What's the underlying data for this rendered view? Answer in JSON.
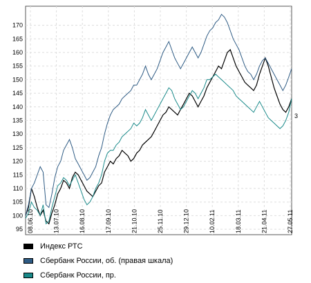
{
  "chart_data": {
    "type": "line",
    "title": "",
    "xlabel": "",
    "ylabel": "",
    "ylim": [
      93,
      177
    ],
    "yticks": [
      95,
      100,
      105,
      110,
      115,
      120,
      125,
      130,
      135,
      140,
      145,
      150,
      155,
      160,
      165,
      170
    ],
    "xticks": [
      "08.06.10",
      "13.07.10",
      "16.08.10",
      "17.09.10",
      "21.10.10",
      "25.11.10",
      "29.12.10",
      "10.02.11",
      "18.03.11",
      "21.04.11",
      "27.05.11"
    ],
    "right_axis_label": "3",
    "grid": true,
    "legend_position": "bottom",
    "series": [
      {
        "name": "Индекс РТС",
        "color": "#000000",
        "values": [
          100,
          103,
          110,
          107,
          103,
          100,
          102,
          98,
          97,
          101,
          104,
          108,
          110,
          113,
          112,
          110,
          114,
          116,
          115,
          113,
          111,
          109,
          108,
          107,
          109,
          111,
          112,
          116,
          118,
          120,
          119,
          121,
          122,
          124,
          123,
          122,
          120,
          121,
          123,
          124,
          126,
          127,
          128,
          129,
          131,
          133,
          135,
          137,
          138,
          140,
          139,
          138,
          137,
          139,
          141,
          143,
          145,
          144,
          142,
          140,
          142,
          144,
          147,
          149,
          151,
          153,
          155,
          154,
          157,
          160,
          161,
          158,
          155,
          153,
          151,
          149,
          148,
          147,
          146,
          148,
          152,
          155,
          158,
          155,
          151,
          147,
          144,
          141,
          139,
          138,
          140,
          143
        ]
      },
      {
        "name": "Сбербанк России, об. (правая шкала)",
        "color": "#2e5b84",
        "values": [
          100,
          104,
          110,
          112,
          115,
          118,
          116,
          104,
          103,
          108,
          114,
          118,
          120,
          124,
          126,
          128,
          125,
          121,
          119,
          117,
          115,
          113,
          114,
          116,
          118,
          122,
          125,
          130,
          134,
          137,
          139,
          140,
          141,
          143,
          144,
          145,
          146,
          148,
          148,
          150,
          152,
          155,
          152,
          150,
          152,
          154,
          157,
          160,
          162,
          164,
          161,
          158,
          156,
          154,
          156,
          158,
          160,
          162,
          160,
          158,
          160,
          163,
          166,
          168,
          169,
          171,
          172,
          174,
          173,
          171,
          168,
          165,
          163,
          161,
          158,
          155,
          153,
          152,
          150,
          152,
          155,
          157,
          158,
          156,
          154,
          152,
          150,
          148,
          146,
          148,
          151,
          154
        ]
      },
      {
        "name": "Сбербанк России, пр.",
        "color": "#1a8a8a",
        "values": [
          99,
          101,
          105,
          103,
          102,
          100,
          104,
          97,
          98,
          103,
          107,
          111,
          112,
          114,
          113,
          111,
          113,
          115,
          112,
          109,
          106,
          104,
          105,
          107,
          110,
          112,
          115,
          120,
          123,
          124,
          124,
          126,
          127,
          129,
          130,
          131,
          132,
          134,
          133,
          134,
          136,
          139,
          137,
          135,
          137,
          139,
          141,
          143,
          145,
          147,
          146,
          143,
          141,
          139,
          140,
          142,
          144,
          146,
          145,
          143,
          145,
          147,
          150,
          150,
          151,
          152,
          151,
          150,
          149,
          148,
          147,
          146,
          144,
          143,
          142,
          141,
          140,
          139,
          138,
          140,
          142,
          140,
          138,
          136,
          135,
          134,
          133,
          132,
          133,
          135,
          138,
          143
        ]
      }
    ]
  }
}
